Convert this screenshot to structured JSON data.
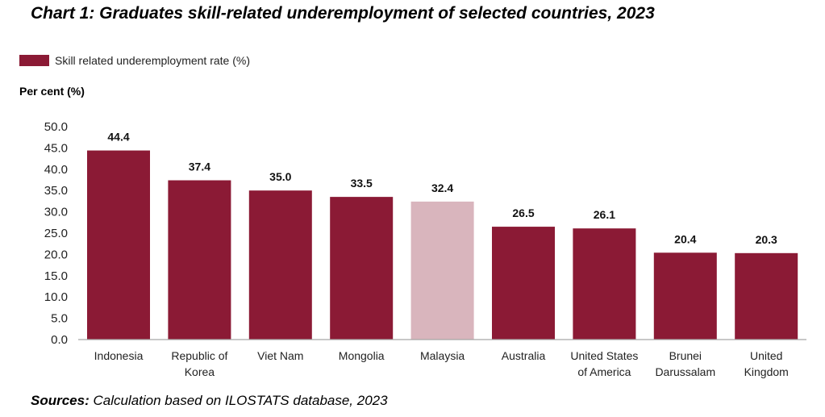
{
  "colors": {
    "bar": "#8B1A35",
    "highlight": "#D9B5BD",
    "axis": "#A6A6A6"
  },
  "chart_data": {
    "type": "bar",
    "title": "Chart 1: Graduates skill-related underemployment of selected countries, 2023",
    "legend": {
      "label": "Skill related underemployment rate (%)",
      "position": "top-left"
    },
    "ylabel": "Per cent (%)",
    "xlabel": "",
    "ylim": [
      0,
      50
    ],
    "yticks": [
      "0.0",
      "5.0",
      "10.0",
      "15.0",
      "20.0",
      "25.0",
      "30.0",
      "35.0",
      "40.0",
      "45.0",
      "50.0"
    ],
    "grid": false,
    "categories": [
      [
        "Indonesia"
      ],
      [
        "Republic of",
        "Korea"
      ],
      [
        "Viet Nam"
      ],
      [
        "Mongolia"
      ],
      [
        "Malaysia"
      ],
      [
        "Australia"
      ],
      [
        "United States",
        "of America"
      ],
      [
        "Brunei",
        "Darussalam"
      ],
      [
        "United",
        "Kingdom"
      ]
    ],
    "values": [
      44.4,
      37.4,
      35.0,
      33.5,
      32.4,
      26.5,
      26.1,
      20.4,
      20.3
    ],
    "labels": [
      "44.4",
      "37.4",
      "35.0",
      "33.5",
      "32.4",
      "26.5",
      "26.1",
      "20.4",
      "20.3"
    ],
    "highlight_index": 4
  },
  "source": {
    "prefix": "Sources:",
    "text": " Calculation based on ILOSTATS database, 2023"
  }
}
